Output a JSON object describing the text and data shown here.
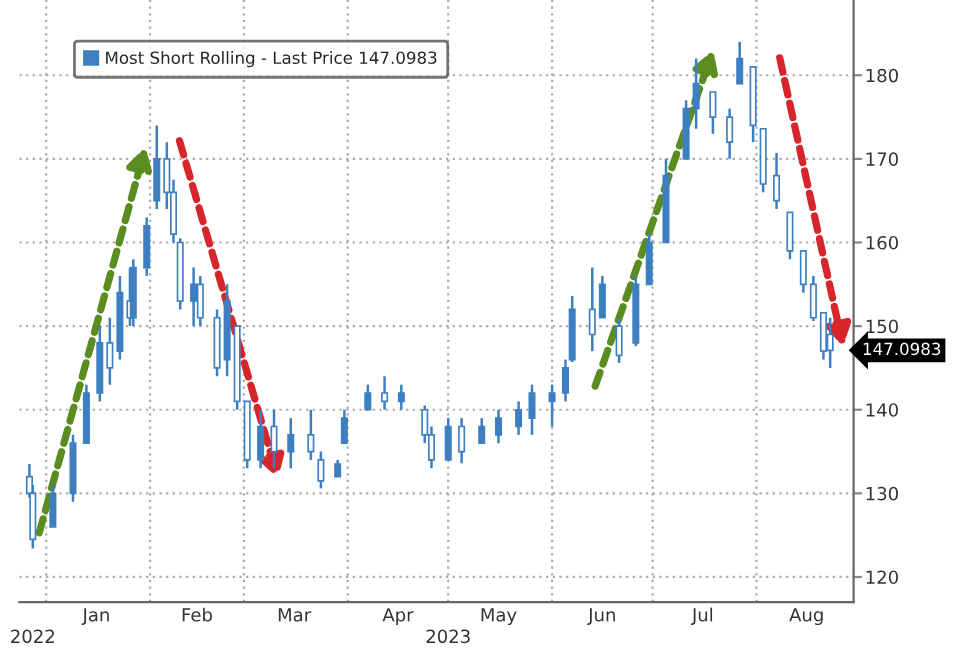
{
  "chart_data": {
    "type": "candlestick",
    "x": [
      "2022-12-27",
      "2022-12-28",
      "2023-01-03",
      "2023-01-09",
      "2023-01-13",
      "2023-01-17",
      "2023-01-20",
      "2023-01-23",
      "2023-01-26",
      "2023-01-27",
      "2023-01-31",
      "2023-02-03",
      "2023-02-06",
      "2023-02-08",
      "2023-02-10",
      "2023-02-14",
      "2023-02-16",
      "2023-02-21",
      "2023-02-24",
      "2023-02-27",
      "2023-03-02",
      "2023-03-06",
      "2023-03-10",
      "2023-03-15",
      "2023-03-21",
      "2023-03-24",
      "2023-03-29",
      "2023-03-31",
      "2023-04-07",
      "2023-04-12",
      "2023-04-17",
      "2023-04-24",
      "2023-04-26",
      "2023-05-01",
      "2023-05-05",
      "2023-05-11",
      "2023-05-16",
      "2023-05-22",
      "2023-05-26",
      "2023-06-01",
      "2023-06-05",
      "2023-06-07",
      "2023-06-13",
      "2023-06-16",
      "2023-06-21",
      "2023-06-26",
      "2023-06-30",
      "2023-07-05",
      "2023-07-11",
      "2023-07-14",
      "2023-07-19",
      "2023-07-24",
      "2023-07-27",
      "2023-07-31",
      "2023-08-03",
      "2023-08-07",
      "2023-08-11",
      "2023-08-15",
      "2023-08-18",
      "2023-08-21",
      "2023-08-23"
    ],
    "series": [
      {
        "name": "Most Short Rolling - Last Price 147.0983",
        "color": "#3d7fc1",
        "ohlc": [
          [
            132,
            133.5,
            129.5,
            130
          ],
          [
            130,
            131,
            123.4,
            124.5
          ],
          [
            126,
            131,
            126,
            130
          ],
          [
            130,
            137,
            129,
            136
          ],
          [
            136,
            143,
            136,
            142
          ],
          [
            142,
            150,
            141,
            148
          ],
          [
            148,
            151,
            143,
            145
          ],
          [
            147,
            156,
            146,
            154
          ],
          [
            153,
            157,
            150,
            151
          ],
          [
            151,
            158,
            150,
            157
          ],
          [
            157,
            163,
            156,
            162
          ],
          [
            165,
            174,
            164,
            170
          ],
          [
            170,
            172,
            164,
            166
          ],
          [
            166,
            167.5,
            160,
            161
          ],
          [
            160,
            160.5,
            152,
            153
          ],
          [
            153,
            157,
            150,
            155
          ],
          [
            155,
            156,
            150,
            151
          ],
          [
            151,
            152,
            144,
            145
          ],
          [
            146,
            155,
            144,
            153
          ],
          [
            150,
            150,
            140,
            141
          ],
          [
            141,
            141,
            133,
            134
          ],
          [
            134,
            140,
            133,
            138
          ],
          [
            138,
            140,
            133,
            135
          ],
          [
            135,
            139,
            133,
            137
          ],
          [
            137,
            140,
            134,
            135
          ],
          [
            134,
            135,
            130.6,
            131.5
          ],
          [
            132,
            134,
            132,
            133.5
          ],
          [
            136,
            140,
            136,
            139
          ],
          [
            140,
            143,
            140,
            142
          ],
          [
            142,
            144,
            140,
            141
          ],
          [
            141,
            143,
            140,
            142
          ],
          [
            140,
            140.5,
            136,
            137
          ],
          [
            137,
            138,
            133,
            134
          ],
          [
            134,
            139,
            134,
            138
          ],
          [
            138,
            139,
            133.6,
            135
          ],
          [
            136,
            139,
            136,
            138
          ],
          [
            137,
            140,
            136,
            139
          ],
          [
            138,
            141,
            137,
            140
          ],
          [
            139,
            143,
            137,
            142
          ],
          [
            141,
            143,
            138,
            142
          ],
          [
            142,
            146,
            141,
            145
          ],
          [
            146,
            153.6,
            145.7,
            152
          ],
          [
            152,
            157,
            147,
            149
          ],
          [
            151,
            156,
            151,
            155
          ],
          [
            150,
            151,
            145.6,
            146.5
          ],
          [
            148,
            156,
            147.6,
            155
          ],
          [
            155,
            161,
            155,
            160
          ],
          [
            160,
            170,
            160,
            168
          ],
          [
            170,
            177,
            170,
            176
          ],
          [
            176,
            182,
            173.6,
            179
          ],
          [
            178,
            178,
            173,
            175
          ],
          [
            175,
            176,
            170,
            172
          ],
          [
            179,
            184,
            179,
            182
          ],
          [
            181,
            181,
            172,
            174
          ],
          [
            173.6,
            173.6,
            166,
            167
          ],
          [
            168,
            170.7,
            164,
            165
          ],
          [
            163.6,
            163.6,
            158,
            159
          ],
          [
            159,
            159,
            154,
            155
          ],
          [
            155,
            156,
            150.6,
            151
          ],
          [
            151.6,
            151.6,
            146,
            147
          ],
          [
            149,
            151,
            145,
            147.1
          ]
        ]
      }
    ],
    "xlim": [
      "2022-12-24",
      "2023-08-30"
    ],
    "xticks": [
      {
        "value": "2023-01-01",
        "label": null
      },
      {
        "value": "2023-01-16",
        "label": "Jan"
      },
      {
        "value": "2023-02-01",
        "label": null
      },
      {
        "value": "2023-02-15",
        "label": "Feb"
      },
      {
        "value": "2023-03-01",
        "label": null
      },
      {
        "value": "2023-03-16",
        "label": "Mar"
      },
      {
        "value": "2023-04-01",
        "label": null
      },
      {
        "value": "2023-04-16",
        "label": "Apr"
      },
      {
        "value": "2023-05-01",
        "label": null
      },
      {
        "value": "2023-05-16",
        "label": "May"
      },
      {
        "value": "2023-06-01",
        "label": null
      },
      {
        "value": "2023-06-16",
        "label": "Jun"
      },
      {
        "value": "2023-07-01",
        "label": null
      },
      {
        "value": "2023-07-16",
        "label": "Jul"
      },
      {
        "value": "2023-08-01",
        "label": null
      },
      {
        "value": "2023-08-16",
        "label": "Aug"
      }
    ],
    "x2lim": [
      "2022-12-24",
      "2023-08-30"
    ],
    "x2ticks": [
      {
        "value": "2022-12-28",
        "label": "2022"
      },
      {
        "value": "2023-05-01",
        "label": "2023"
      }
    ],
    "ylim": [
      117,
      189
    ],
    "yticks": [
      120,
      130,
      140,
      150,
      160,
      170,
      180
    ],
    "annotations": [
      "147.0983"
    ],
    "grid": true,
    "legend": "top left"
  }
}
